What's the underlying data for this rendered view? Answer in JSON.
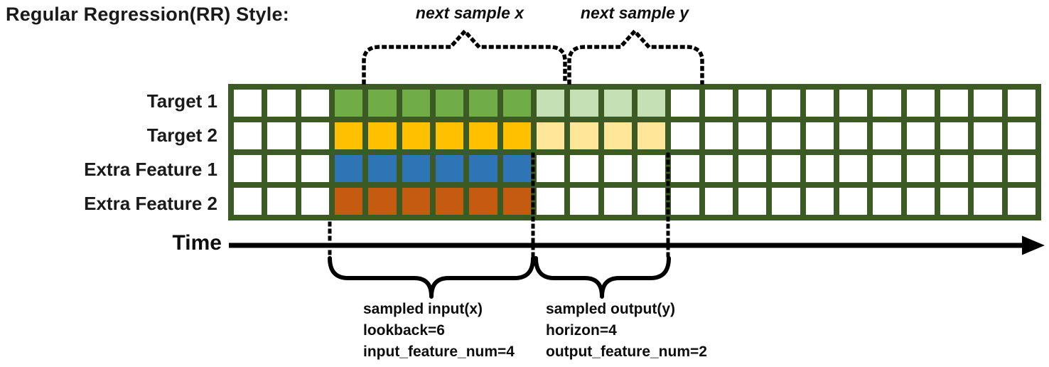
{
  "title": "Regular Regression(RR) Style:",
  "annotations": {
    "next_sample_x": "next sample x",
    "next_sample_y": "next sample y",
    "time_label": "Time",
    "input_block": [
      "sampled input(x)",
      "lookback=6",
      "input_feature_num=4"
    ],
    "output_block": [
      "sampled output(y)",
      "horizon=4",
      "output_feature_num=2"
    ]
  },
  "params": {
    "lookback": 6,
    "horizon": 4,
    "input_feature_num": 4,
    "output_feature_num": 2
  },
  "grid": {
    "columns": 24,
    "border_color": "#3C5A24",
    "empty_fill": "#FFFFFF",
    "input_columns": {
      "start": 4,
      "end": 9
    },
    "output_columns": {
      "start": 10,
      "end": 13
    },
    "rows": [
      {
        "label": "Target 1",
        "input_fill": "#70AD47",
        "output_fill": "#C5E0B4"
      },
      {
        "label": "Target 2",
        "input_fill": "#FFC000",
        "output_fill": "#FFE699"
      },
      {
        "label": "Extra Feature 1",
        "input_fill": "#2E75B6",
        "output_fill": null
      },
      {
        "label": "Extra Feature 2",
        "input_fill": "#C55A11",
        "output_fill": null
      }
    ]
  },
  "line_color": "#000000"
}
